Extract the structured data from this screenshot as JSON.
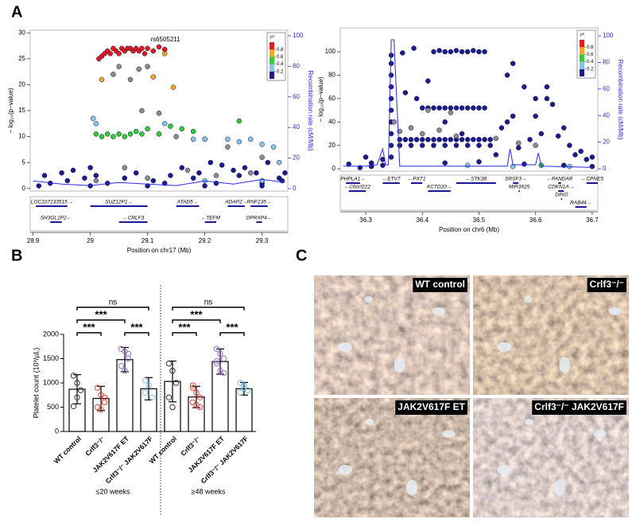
{
  "panel_labels": [
    "A",
    "B",
    "C"
  ],
  "chart_data": [
    {
      "type": "scatter",
      "x_label": "Position on chr17 (Mb)",
      "y_label": "− log₁₀(p−value)",
      "y2_label": "Recombination rate (cM/Mb)",
      "xlim": [
        28.895,
        29.345
      ],
      "xticks": [
        28.9,
        29,
        29.1,
        29.2,
        29.3
      ],
      "ylim": [
        -0.5,
        30.5
      ],
      "yticks": [
        0,
        5,
        10,
        15,
        20,
        25,
        30
      ],
      "y2lim": [
        -1.6,
        103.6
      ],
      "y2ticks": [
        0,
        20,
        40,
        60,
        80,
        100
      ],
      "lead_snp_label": "rs6505211",
      "legend": {
        "title": "r²",
        "ticks": [
          0.2,
          0.4,
          0.6,
          0.8
        ],
        "colors": [
          "#1c1c8a",
          "#86c5e8",
          "#33cc33",
          "#f5a623",
          "#e31a1c"
        ]
      },
      "series": [
        {
          "color": "#1c1c8a",
          "x": [
            28.92,
            28.95,
            28.97,
            28.99,
            29.0,
            29.03,
            29.08,
            29.11,
            29.14,
            29.16,
            29.19,
            29.21,
            29.23,
            29.25,
            29.27,
            29.29,
            29.31,
            29.33,
            29.335,
            28.93,
            28.96,
            29.01,
            29.06,
            29.13,
            29.18,
            29.22,
            29.26,
            29.3,
            29.34,
            28.91,
            29.0,
            29.1,
            29.2,
            29.3
          ],
          "values": [
            2.5,
            3,
            3.5,
            2,
            4,
            1,
            3,
            1.5,
            2.5,
            4,
            3,
            5,
            4.5,
            3.5,
            4,
            3,
            5,
            2,
            1.5,
            1,
            1.5,
            2.5,
            2,
            1,
            2,
            1,
            2.5,
            1,
            3,
            0.5,
            0.5,
            0.5,
            0.5,
            0.5
          ]
        },
        {
          "color": "#8c8c8c",
          "x": [
            29.04,
            29.05,
            29.07,
            29.085,
            29.1,
            29.09,
            29.12,
            29.15,
            29.2,
            29.24,
            29.3,
            29.06,
            29.17,
            29.22,
            29.28,
            29.1,
            29.01
          ],
          "values": [
            22,
            23.5,
            21,
            23,
            23.5,
            15,
            14.5,
            10,
            9.5,
            8,
            6,
            4,
            3.5,
            2.5,
            3,
            2,
            1.5
          ]
        },
        {
          "color": "#86c5e8",
          "x": [
            29.005,
            29.01,
            29.13,
            29.18,
            29.2,
            29.24,
            29.26,
            29.28,
            29.3,
            29.32,
            29.33,
            29.2,
            29.3
          ],
          "values": [
            13.5,
            12.5,
            12.5,
            9.5,
            9.5,
            9.5,
            9,
            9.5,
            8.5,
            8,
            5,
            1.5,
            1.5
          ]
        },
        {
          "color": "#33cc33",
          "x": [
            29.01,
            29.02,
            29.03,
            29.04,
            29.05,
            29.06,
            29.07,
            29.08,
            29.09,
            29.1,
            29.12,
            29.14,
            29.16,
            29.18,
            29.26
          ],
          "values": [
            10.5,
            10,
            10.5,
            10,
            10.5,
            10,
            10.5,
            11,
            10.5,
            11.5,
            10.5,
            12,
            11.5,
            11,
            13
          ]
        },
        {
          "color": "#f5a623",
          "x": [
            29.02,
            29.13,
            29.145,
            29.11
          ],
          "values": [
            21,
            26,
            19.5,
            21.5
          ]
        },
        {
          "color": "#e31a1c",
          "x": [
            29.015,
            29.02,
            29.025,
            29.03,
            29.035,
            29.04,
            29.045,
            29.05,
            29.055,
            29.06,
            29.065,
            29.07,
            29.075,
            29.08,
            29.085,
            29.09,
            29.095,
            29.1,
            29.11,
            29.12,
            29.13
          ],
          "values": [
            25,
            25.5,
            26,
            26.5,
            26,
            27,
            26.5,
            26,
            27,
            26.5,
            27,
            27,
            26.5,
            27,
            26.5,
            27,
            26,
            27,
            26.5,
            27.3,
            26.8
          ]
        },
        {
          "color": "#2a2ae0",
          "axis": "y2",
          "kind": "line",
          "x": [
            28.9,
            28.95,
            29.0,
            29.05,
            29.1,
            29.15,
            29.2,
            29.25,
            29.3,
            29.34
          ],
          "values": [
            5,
            3,
            2,
            4,
            3,
            2,
            5,
            3,
            6,
            4
          ]
        }
      ],
      "genes": [
        [
          {
            "label": "LOC107133515→",
            "start": 28.905,
            "end": 28.96
          },
          {
            "label": "SUZ12P1→",
            "start": 29.0,
            "end": 29.1
          },
          {
            "label": "ATAD5→",
            "start": 29.15,
            "end": 29.19
          },
          {
            "label": "ADAP2→",
            "start": 29.24,
            "end": 29.27
          },
          {
            "label": "RNF135→",
            "start": 29.28,
            "end": 29.31
          }
        ],
        [
          {
            "label": "SH3GL1P2←",
            "start": 28.93,
            "end": 28.95
          },
          {
            "label": "←CRLF3",
            "start": 29.05,
            "end": 29.1
          },
          {
            "label": "←TEFM",
            "start": 29.2,
            "end": 29.22
          },
          {
            "label": "DPRXP4←",
            "start": 29.29,
            "end": 29.3
          }
        ]
      ]
    },
    {
      "type": "scatter",
      "x_label": "Position on chr6 (Mb)",
      "y_label": "− log₁₀(p−value)",
      "y2_label": "Recombination rate (cM/Mb)",
      "xlim": [
        36.255,
        36.71
      ],
      "xticks": [
        36.3,
        36.4,
        36.5,
        36.6,
        36.7
      ],
      "ylim": [
        -2,
        120.4
      ],
      "yticks": [
        0,
        20,
        40,
        60,
        80,
        100
      ],
      "y2lim": [
        -1.8,
        106
      ],
      "y2ticks": [
        0,
        20,
        40,
        60,
        80,
        100
      ],
      "legend": {
        "title": "r²",
        "ticks": [
          0.2,
          0.4,
          0.6,
          0.8
        ],
        "colors": [
          "#1c1c8a",
          "#86c5e8",
          "#33cc33",
          "#f5a623",
          "#e31a1c"
        ]
      },
      "series": [
        {
          "color": "#1c1c8a",
          "x": [
            36.42,
            36.43,
            36.44,
            36.45,
            36.46,
            36.47,
            36.48,
            36.49,
            36.5,
            36.51,
            36.385,
            36.365,
            36.4,
            36.41,
            36.42,
            36.43,
            36.44,
            36.45,
            36.46,
            36.47,
            36.48,
            36.49,
            36.5,
            36.51,
            36.36,
            36.37,
            36.38,
            36.39,
            36.4,
            36.41,
            36.42,
            36.43,
            36.44,
            36.45,
            36.46,
            36.47,
            36.48,
            36.49,
            36.5,
            36.51,
            36.52,
            36.36,
            36.38,
            36.4,
            36.42,
            36.44,
            36.46,
            36.48,
            36.5,
            36.52,
            36.345,
            36.345,
            36.345,
            36.345,
            36.345,
            36.345,
            36.345,
            36.345,
            36.345,
            36.345,
            36.3,
            36.31,
            36.33,
            36.55,
            36.56,
            36.58,
            36.6,
            36.62,
            36.63,
            36.65,
            36.66,
            36.68,
            36.7,
            36.59,
            36.61,
            36.57,
            36.54,
            36.53,
            36.55,
            36.56,
            36.6,
            36.62,
            36.64,
            36.67,
            36.69,
            36.39,
            36.41,
            36.37,
            36.44,
            36.47,
            36.33,
            36.31,
            36.29,
            36.27,
            36.65,
            36.7,
            36.44,
            36.5,
            36.58
          ],
          "values": [
            100,
            101,
            100,
            100,
            101,
            100,
            100,
            101,
            100,
            100,
            103,
            99,
            52,
            52,
            52,
            52,
            52,
            52,
            52,
            52,
            52,
            52,
            52,
            52,
            25,
            25,
            25,
            25,
            25,
            25,
            25,
            25,
            25,
            25,
            25,
            25,
            25,
            25,
            25,
            25,
            25,
            20,
            20,
            20,
            20,
            20,
            20,
            20,
            20,
            20,
            10,
            20,
            30,
            40,
            50,
            60,
            70,
            80,
            90,
            97,
            10,
            5,
            8,
            40,
            45,
            70,
            60,
            60,
            55,
            35,
            20,
            15,
            10,
            25,
            30,
            18,
            35,
            12,
            80,
            90,
            45,
            70,
            28,
            12,
            8,
            60,
            75,
            65,
            40,
            30,
            3,
            2,
            1,
            4,
            3,
            2,
            5,
            6,
            4
          ]
        },
        {
          "color": "#8c8c8c",
          "x": [
            36.36,
            36.38,
            36.4,
            36.43,
            36.46,
            36.53,
            36.57,
            36.6,
            36.41,
            36.45,
            36.35
          ],
          "values": [
            32,
            35,
            30,
            33,
            28,
            26,
            22,
            20,
            50,
            48,
            40
          ]
        },
        {
          "color": "#86c5e8",
          "x": [
            36.48,
            36.56,
            36.66
          ],
          "values": [
            3,
            2,
            2
          ]
        },
        {
          "color": "#33cc33",
          "x": [
            36.61
          ],
          "values": [
            3
          ]
        },
        {
          "color": "#2a2ae0",
          "axis": "y2",
          "kind": "line",
          "x": [
            36.26,
            36.3,
            36.32,
            36.33,
            36.335,
            36.34,
            36.345,
            36.35,
            36.36,
            36.4,
            36.5,
            36.55,
            36.555,
            36.56,
            36.6,
            36.605,
            36.61,
            36.7
          ],
          "values": [
            2,
            2,
            3,
            15,
            3,
            3,
            97,
            97,
            2,
            2,
            2,
            2,
            15,
            3,
            3,
            12,
            2,
            1
          ]
        }
      ],
      "genes": [
        [
          {
            "label": "PHPLA1→",
            "start": 36.265,
            "end": 36.29
          },
          {
            "label": "←ETV7",
            "start": 36.33,
            "end": 36.36
          },
          {
            "label": "←PXT1",
            "start": 36.38,
            "end": 36.4
          },
          {
            "label": "←STK38",
            "start": 36.46,
            "end": 36.53
          },
          {
            "label": "SRSF3→",
            "start": 36.56,
            "end": 36.57
          },
          {
            "label": "←PANDAR",
            "start": 36.64,
            "end": 36.645
          },
          {
            "label": "←CPNE5",
            "start": 36.69,
            "end": 36.71
          }
        ],
        [
          {
            "label": "←C6orf222",
            "start": 36.27,
            "end": 36.3
          },
          {
            "label": "KCTD20→",
            "start": 36.41,
            "end": 36.45
          },
          {
            "label": "MIR3925",
            "start": 36.57,
            "end": 36.572
          },
          {
            "label": "CDKN1A→",
            "start": 36.64,
            "end": 36.65
          }
        ],
        [
          {
            "label": "DINO",
            "start": 36.645,
            "end": 36.647
          }
        ],
        [
          {
            "label": "RAB44→",
            "start": 36.67,
            "end": 36.69
          }
        ]
      ]
    },
    {
      "type": "bar",
      "y_label": "Platelet count (10³/µL)",
      "categories": [
        "WT control",
        "Crlf3⁻/⁻",
        "JAK2V617F ET",
        "Crlf3⁻/⁻ JAK2V617F",
        "WT control",
        "Crlf3⁻/⁻",
        "JAK2V617F ET",
        "Crlf3⁻/⁻ JAK2V617F"
      ],
      "values": [
        870,
        680,
        1480,
        880,
        1030,
        710,
        1440,
        880
      ],
      "errors": [
        300,
        250,
        250,
        230,
        420,
        220,
        260,
        130
      ],
      "points": [
        [
          1150,
          1000,
          850,
          520,
          700
        ],
        [
          900,
          750,
          600,
          500,
          450,
          700
        ],
        [
          1700,
          1650,
          1500,
          1350,
          1250,
          1600
        ],
        [
          1050,
          950,
          700,
          800
        ],
        [
          1400,
          1250,
          1000,
          700,
          500
        ],
        [
          950,
          800,
          700,
          600,
          550,
          500,
          900
        ],
        [
          1700,
          1600,
          1500,
          1400,
          1250,
          1200,
          1450
        ],
        [
          1000,
          950,
          850,
          800,
          900
        ]
      ],
      "point_colors": [
        "#333333",
        "#e8453c",
        "#9a6fd0",
        "#7cc4e6",
        "#333333",
        "#e8453c",
        "#9a6fd0",
        "#7cc4e6"
      ],
      "groups": [
        "≤20 weeks",
        "≥48 weeks"
      ],
      "brackets": [
        {
          "from": 0,
          "to": 3,
          "label": "ns"
        },
        {
          "from": 0,
          "to": 2,
          "label": "***"
        },
        {
          "from": 0,
          "to": 1,
          "label": "***"
        },
        {
          "from": 2,
          "to": 3,
          "label": "***"
        },
        {
          "from": 4,
          "to": 7,
          "label": "ns"
        },
        {
          "from": 4,
          "to": 6,
          "label": "***"
        },
        {
          "from": 4,
          "to": 5,
          "label": "***"
        },
        {
          "from": 6,
          "to": 7,
          "label": "***"
        }
      ],
      "ylim": [
        0,
        2000
      ],
      "yticks": [
        0,
        500,
        1000,
        1500,
        2000
      ]
    }
  ],
  "micrographs": [
    {
      "label": "WT control"
    },
    {
      "label": "Crlf3⁻/⁻"
    },
    {
      "label": "JAK2V617F ET"
    },
    {
      "label": "Crlf3⁻/⁻ JAK2V617F"
    }
  ]
}
